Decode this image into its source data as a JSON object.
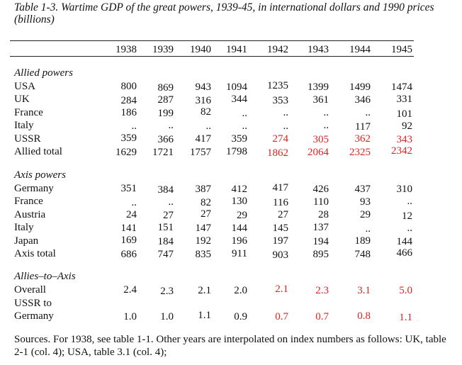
{
  "title": "Table 1-3. Wartime GDP of the great powers, 1939-45, in international dollars and 1990 prices (billions)",
  "columns": [
    "1938",
    "1939",
    "1940",
    "1941",
    "1942",
    "1943",
    "1944",
    "1945"
  ],
  "sections": [
    {
      "heading": "Allied powers",
      "rows": [
        {
          "label": "USA",
          "values": [
            "800",
            "869",
            "943",
            "1094",
            "1235",
            "1399",
            "1499",
            "1474"
          ],
          "red": [
            false,
            false,
            false,
            false,
            false,
            false,
            false,
            false
          ]
        },
        {
          "label": "UK",
          "values": [
            "284",
            "287",
            "316",
            "344",
            "353",
            "361",
            "346",
            "331"
          ],
          "red": [
            false,
            false,
            false,
            false,
            false,
            false,
            false,
            false
          ]
        },
        {
          "label": "France",
          "values": [
            "186",
            "199",
            "82",
            "..",
            "..",
            "..",
            "..",
            "101"
          ],
          "red": [
            false,
            false,
            false,
            false,
            false,
            false,
            false,
            false
          ]
        },
        {
          "label": "Italy",
          "values": [
            "..",
            "..",
            "..",
            "..",
            "..",
            "..",
            "117",
            "92"
          ],
          "red": [
            false,
            false,
            false,
            false,
            false,
            false,
            false,
            false
          ]
        },
        {
          "label": "USSR",
          "values": [
            "359",
            "366",
            "417",
            "359",
            "274",
            "305",
            "362",
            "343"
          ],
          "red": [
            false,
            false,
            false,
            false,
            true,
            true,
            true,
            true
          ]
        },
        {
          "label": "Allied total",
          "values": [
            "1629",
            "1721",
            "1757",
            "1798",
            "1862",
            "2064",
            "2325",
            "2342"
          ],
          "red": [
            false,
            false,
            false,
            false,
            true,
            true,
            true,
            true
          ]
        }
      ]
    },
    {
      "heading": "Axis powers",
      "rows": [
        {
          "label": "Germany",
          "values": [
            "351",
            "384",
            "387",
            "412",
            "417",
            "426",
            "437",
            "310"
          ],
          "red": [
            false,
            false,
            false,
            false,
            false,
            false,
            false,
            false
          ]
        },
        {
          "label": "France",
          "values": [
            "..",
            "..",
            "82",
            "130",
            "116",
            "110",
            "93",
            ".."
          ],
          "red": [
            false,
            false,
            false,
            false,
            false,
            false,
            false,
            false
          ]
        },
        {
          "label": "Austria",
          "values": [
            "24",
            "27",
            "27",
            "29",
            "27",
            "28",
            "29",
            "12"
          ],
          "red": [
            false,
            false,
            false,
            false,
            false,
            false,
            false,
            false
          ]
        },
        {
          "label": "Italy",
          "values": [
            "141",
            "151",
            "147",
            "144",
            "145",
            "137",
            "..",
            ".."
          ],
          "red": [
            false,
            false,
            false,
            false,
            false,
            false,
            false,
            false
          ]
        },
        {
          "label": "Japan",
          "values": [
            "169",
            "184",
            "192",
            "196",
            "197",
            "194",
            "189",
            "144"
          ],
          "red": [
            false,
            false,
            false,
            false,
            false,
            false,
            false,
            false
          ]
        },
        {
          "label": "Axis total",
          "values": [
            "686",
            "747",
            "835",
            "911",
            "903",
            "895",
            "748",
            "466"
          ],
          "red": [
            false,
            false,
            false,
            false,
            false,
            false,
            false,
            false
          ]
        }
      ]
    },
    {
      "heading": "Allies–to–Axis",
      "rows": [
        {
          "label": "Overall",
          "values": [
            "2.4",
            "2.3",
            "2.1",
            "2.0",
            "2.1",
            "2.3",
            "3.1",
            "5.0"
          ],
          "red": [
            false,
            false,
            false,
            false,
            true,
            true,
            true,
            true
          ]
        },
        {
          "label": "USSR to",
          "values": [
            "",
            "",
            "",
            "",
            "",
            "",
            "",
            ""
          ],
          "red": [
            false,
            false,
            false,
            false,
            false,
            false,
            false,
            false
          ]
        },
        {
          "label": "Germany",
          "values": [
            "1.0",
            "1.0",
            "1.1",
            "0.9",
            "0.7",
            "0.7",
            "0.8",
            "1.1"
          ],
          "red": [
            false,
            false,
            false,
            false,
            true,
            true,
            true,
            true
          ]
        }
      ]
    }
  ],
  "sources": "Sources. For 1938, see table 1-1. Other years are interpolated on index numbers as follows: UK, table 2-1 (col. 4); USA, table 3.1 (col. 4);",
  "colors": {
    "highlight": "#dd2222"
  }
}
